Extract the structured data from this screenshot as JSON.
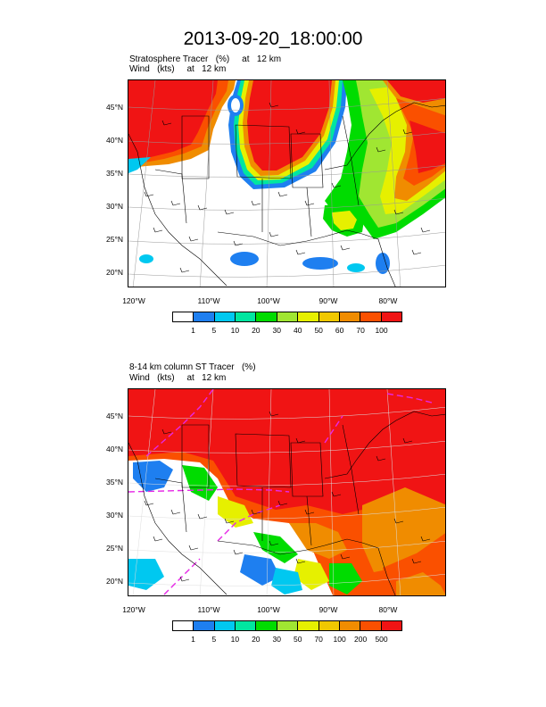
{
  "main_title": "2013-09-20_18:00:00",
  "panels": [
    {
      "id": "top",
      "title_line1": "Stratosphere Tracer   (%)     at   12 km",
      "title_line2": "Wind   (kts)     at   12 km",
      "lat_labels": [
        "45°N",
        "40°N",
        "35°N",
        "30°N",
        "25°N",
        "20°N"
      ],
      "lon_labels": [
        "120°W",
        "110°W",
        "100°W",
        "90°W",
        "80°W"
      ],
      "colorbar": {
        "colors": [
          "#ffffff",
          "#1e7ff0",
          "#00c8f0",
          "#00e6a0",
          "#00dc00",
          "#a0e632",
          "#e6f000",
          "#f0c800",
          "#f08c00",
          "#fa5000",
          "#f01414"
        ],
        "labels": [
          "1",
          "5",
          "10",
          "20",
          "30",
          "40",
          "50",
          "60",
          "70",
          "100"
        ]
      }
    },
    {
      "id": "bottom",
      "title_line1": "8-14 km column ST Tracer   (%)",
      "title_line2": "Wind   (kts)     at   12 km",
      "lat_labels": [
        "45°N",
        "40°N",
        "35°N",
        "30°N",
        "25°N",
        "20°N"
      ],
      "lon_labels": [
        "120°W",
        "110°W",
        "100°W",
        "90°W",
        "80°W"
      ],
      "colorbar": {
        "colors": [
          "#ffffff",
          "#1e7ff0",
          "#00c8f0",
          "#00e6a0",
          "#00dc00",
          "#a0e632",
          "#e6f000",
          "#f0c800",
          "#f08c00",
          "#fa5000",
          "#f01414"
        ],
        "labels": [
          "1",
          "5",
          "10",
          "20",
          "30",
          "50",
          "70",
          "100",
          "200",
          "500"
        ]
      }
    }
  ],
  "colors": {
    "red": "#f01414",
    "orange_red": "#fa5000",
    "orange": "#f08c00",
    "yellow": "#e6f000",
    "green": "#00dc00",
    "cyan": "#00c8f0",
    "blue": "#1e7ff0",
    "magenta_dashed": "#e628e6"
  }
}
